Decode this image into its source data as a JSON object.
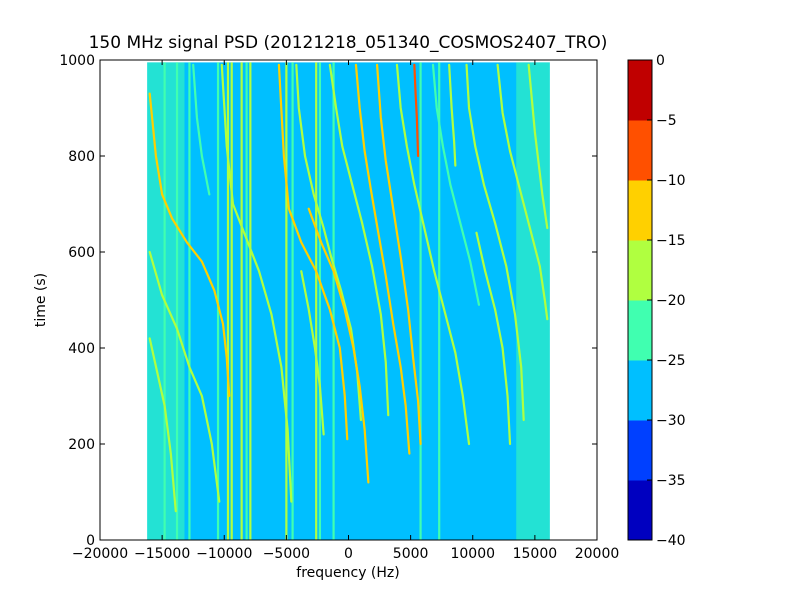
{
  "chart_data": {
    "type": "heatmap",
    "title": "150 MHz signal PSD (20121218_051340_COSMOS2407_TRO)",
    "xlabel": "frequency (Hz)",
    "ylabel": "time (s)",
    "xlim": [
      -20000,
      20000
    ],
    "ylim": [
      0,
      1000
    ],
    "xticks": [
      -20000,
      -15000,
      -10000,
      -5000,
      0,
      5000,
      10000,
      15000,
      20000
    ],
    "xtick_labels": [
      "−20000",
      "−15000",
      "−10000",
      "−5000",
      "0",
      "5000",
      "10000",
      "15000",
      "20000"
    ],
    "yticks": [
      0,
      200,
      400,
      600,
      800,
      1000
    ],
    "ytick_labels": [
      "0",
      "200",
      "400",
      "600",
      "800",
      "1000"
    ],
    "data_extent": {
      "freq_min": -16200,
      "freq_max": 16200,
      "time_min": 0,
      "time_max": 995
    },
    "background_level": -27.5,
    "colorbar": {
      "levels": [
        -40,
        -35,
        -30,
        -25,
        -20,
        -15,
        -10,
        -5,
        0
      ],
      "tick_labels": [
        "−40",
        "−35",
        "−30",
        "−25",
        "−20",
        "−15",
        "−10",
        "−5",
        "0"
      ],
      "colors": [
        "#0000c0",
        "#0040ff",
        "#00bfff",
        "#40ffb0",
        "#b0ff40",
        "#ffd000",
        "#ff5000",
        "#c00000"
      ]
    },
    "edge_bands": [
      {
        "from": -16200,
        "to": -13200,
        "level": -22.5
      },
      {
        "from": 13500,
        "to": 16200,
        "level": -22.5
      }
    ],
    "vertical_lines": [
      {
        "freq": -14800,
        "level": -22.5
      },
      {
        "freq": -13800,
        "level": -22.5
      },
      {
        "freq": -12800,
        "level": -22.5
      },
      {
        "freq": -10500,
        "level": -22.5
      },
      {
        "freq": -9700,
        "level": -17.5
      },
      {
        "freq": -9400,
        "level": -17.5
      },
      {
        "freq": -8600,
        "level": -17.5
      },
      {
        "freq": -8200,
        "level": -22.5
      },
      {
        "freq": -7900,
        "level": -17.5
      },
      {
        "freq": -5000,
        "level": -17.5
      },
      {
        "freq": -4500,
        "level": -22.5
      },
      {
        "freq": -2600,
        "level": -17.5
      },
      {
        "freq": -2300,
        "level": -22.5
      },
      {
        "freq": -1200,
        "level": -22.5
      },
      {
        "freq": 5800,
        "level": -22.5
      },
      {
        "freq": 7300,
        "level": -22.5
      }
    ],
    "series": [
      {
        "level": -12.5,
        "points": [
          [
            -16000,
            930
          ],
          [
            -15500,
            800
          ],
          [
            -15000,
            720
          ],
          [
            -14200,
            670
          ],
          [
            -13000,
            620
          ],
          [
            -11800,
            580
          ],
          [
            -10800,
            520
          ],
          [
            -10100,
            450
          ],
          [
            -9800,
            380
          ],
          [
            -9600,
            300
          ]
        ]
      },
      {
        "level": -17.5,
        "points": [
          [
            -16000,
            600
          ],
          [
            -15000,
            510
          ],
          [
            -13800,
            440
          ],
          [
            -12800,
            360
          ],
          [
            -11800,
            300
          ],
          [
            -11000,
            200
          ],
          [
            -10400,
            80
          ]
        ]
      },
      {
        "level": -17.5,
        "points": [
          [
            -16000,
            420
          ],
          [
            -15400,
            350
          ],
          [
            -14800,
            280
          ],
          [
            -14300,
            180
          ],
          [
            -13900,
            60
          ]
        ]
      },
      {
        "level": -17.5,
        "points": [
          [
            -10200,
            990
          ],
          [
            -9800,
            820
          ],
          [
            -9300,
            700
          ],
          [
            -8400,
            640
          ],
          [
            -7200,
            560
          ],
          [
            -6200,
            470
          ],
          [
            -5400,
            360
          ],
          [
            -4900,
            230
          ],
          [
            -4600,
            80
          ]
        ]
      },
      {
        "level": -12.5,
        "points": [
          [
            -5600,
            990
          ],
          [
            -5200,
            800
          ],
          [
            -4800,
            690
          ],
          [
            -3800,
            620
          ],
          [
            -2600,
            560
          ],
          [
            -1500,
            480
          ],
          [
            -700,
            400
          ],
          [
            -300,
            300
          ],
          [
            -100,
            210
          ]
        ]
      },
      {
        "level": -17.5,
        "points": [
          [
            -4200,
            990
          ],
          [
            -4000,
            900
          ],
          [
            -3500,
            800
          ],
          [
            -2800,
            720
          ],
          [
            -2000,
            650
          ],
          [
            -1400,
            590
          ],
          [
            -600,
            520
          ],
          [
            200,
            440
          ],
          [
            700,
            350
          ],
          [
            1000,
            250
          ]
        ]
      },
      {
        "level": -17.5,
        "points": [
          [
            -1500,
            990
          ],
          [
            -1000,
            900
          ],
          [
            -500,
            820
          ],
          [
            300,
            740
          ],
          [
            1100,
            660
          ],
          [
            1900,
            570
          ],
          [
            2600,
            470
          ],
          [
            3000,
            370
          ],
          [
            3200,
            260
          ]
        ]
      },
      {
        "level": -12.5,
        "points": [
          [
            -3200,
            690
          ],
          [
            -2200,
            620
          ],
          [
            -1200,
            560
          ],
          [
            -300,
            480
          ],
          [
            400,
            400
          ],
          [
            900,
            320
          ],
          [
            1300,
            230
          ],
          [
            1600,
            120
          ]
        ]
      },
      {
        "level": -17.5,
        "points": [
          [
            -3800,
            560
          ],
          [
            -3200,
            480
          ],
          [
            -2700,
            400
          ],
          [
            -2300,
            320
          ],
          [
            -2000,
            220
          ]
        ]
      },
      {
        "level": -12.5,
        "points": [
          [
            2300,
            990
          ],
          [
            2600,
            880
          ],
          [
            3000,
            790
          ],
          [
            3600,
            690
          ],
          [
            4200,
            590
          ],
          [
            4800,
            480
          ],
          [
            5200,
            380
          ],
          [
            5600,
            290
          ],
          [
            5800,
            200
          ]
        ]
      },
      {
        "level": -12.5,
        "points": [
          [
            600,
            990
          ],
          [
            900,
            900
          ],
          [
            1300,
            810
          ],
          [
            1800,
            730
          ],
          [
            2400,
            640
          ],
          [
            3000,
            550
          ],
          [
            3600,
            450
          ],
          [
            4200,
            360
          ],
          [
            4600,
            280
          ],
          [
            4900,
            180
          ]
        ]
      },
      {
        "level": -7.5,
        "points": [
          [
            5300,
            990
          ],
          [
            5400,
            930
          ],
          [
            5500,
            880
          ],
          [
            5600,
            800
          ]
        ]
      },
      {
        "level": -17.5,
        "points": [
          [
            3900,
            990
          ],
          [
            4200,
            900
          ],
          [
            4700,
            820
          ],
          [
            5300,
            740
          ],
          [
            6100,
            650
          ],
          [
            6900,
            560
          ],
          [
            7800,
            470
          ],
          [
            8600,
            390
          ],
          [
            9200,
            300
          ],
          [
            9700,
            200
          ]
        ]
      },
      {
        "level": -17.5,
        "points": [
          [
            8100,
            990
          ],
          [
            8300,
            900
          ],
          [
            8500,
            830
          ],
          [
            8600,
            780
          ]
        ]
      },
      {
        "level": -17.5,
        "points": [
          [
            9500,
            990
          ],
          [
            9700,
            900
          ],
          [
            10200,
            820
          ],
          [
            10900,
            740
          ],
          [
            11800,
            660
          ],
          [
            12700,
            570
          ],
          [
            13400,
            470
          ],
          [
            13900,
            360
          ],
          [
            14100,
            250
          ]
        ]
      },
      {
        "level": -17.5,
        "points": [
          [
            12000,
            990
          ],
          [
            12400,
            890
          ],
          [
            13000,
            810
          ],
          [
            13800,
            730
          ],
          [
            14600,
            650
          ],
          [
            15400,
            570
          ],
          [
            15800,
            500
          ],
          [
            16000,
            460
          ]
        ]
      },
      {
        "level": -17.5,
        "points": [
          [
            10300,
            640
          ],
          [
            11000,
            560
          ],
          [
            11800,
            480
          ],
          [
            12400,
            400
          ],
          [
            12800,
            300
          ],
          [
            13000,
            200
          ]
        ]
      },
      {
        "level": -17.5,
        "points": [
          [
            14500,
            990
          ],
          [
            15000,
            850
          ],
          [
            15600,
            720
          ],
          [
            16000,
            650
          ]
        ]
      },
      {
        "level": -22.5,
        "points": [
          [
            -12500,
            990
          ],
          [
            -12200,
            880
          ],
          [
            -11800,
            800
          ],
          [
            -11200,
            720
          ]
        ]
      },
      {
        "level": -22.5,
        "points": [
          [
            6800,
            990
          ],
          [
            7100,
            900
          ],
          [
            7600,
            820
          ],
          [
            8200,
            740
          ],
          [
            9000,
            660
          ],
          [
            9800,
            580
          ],
          [
            10500,
            490
          ]
        ]
      }
    ]
  }
}
